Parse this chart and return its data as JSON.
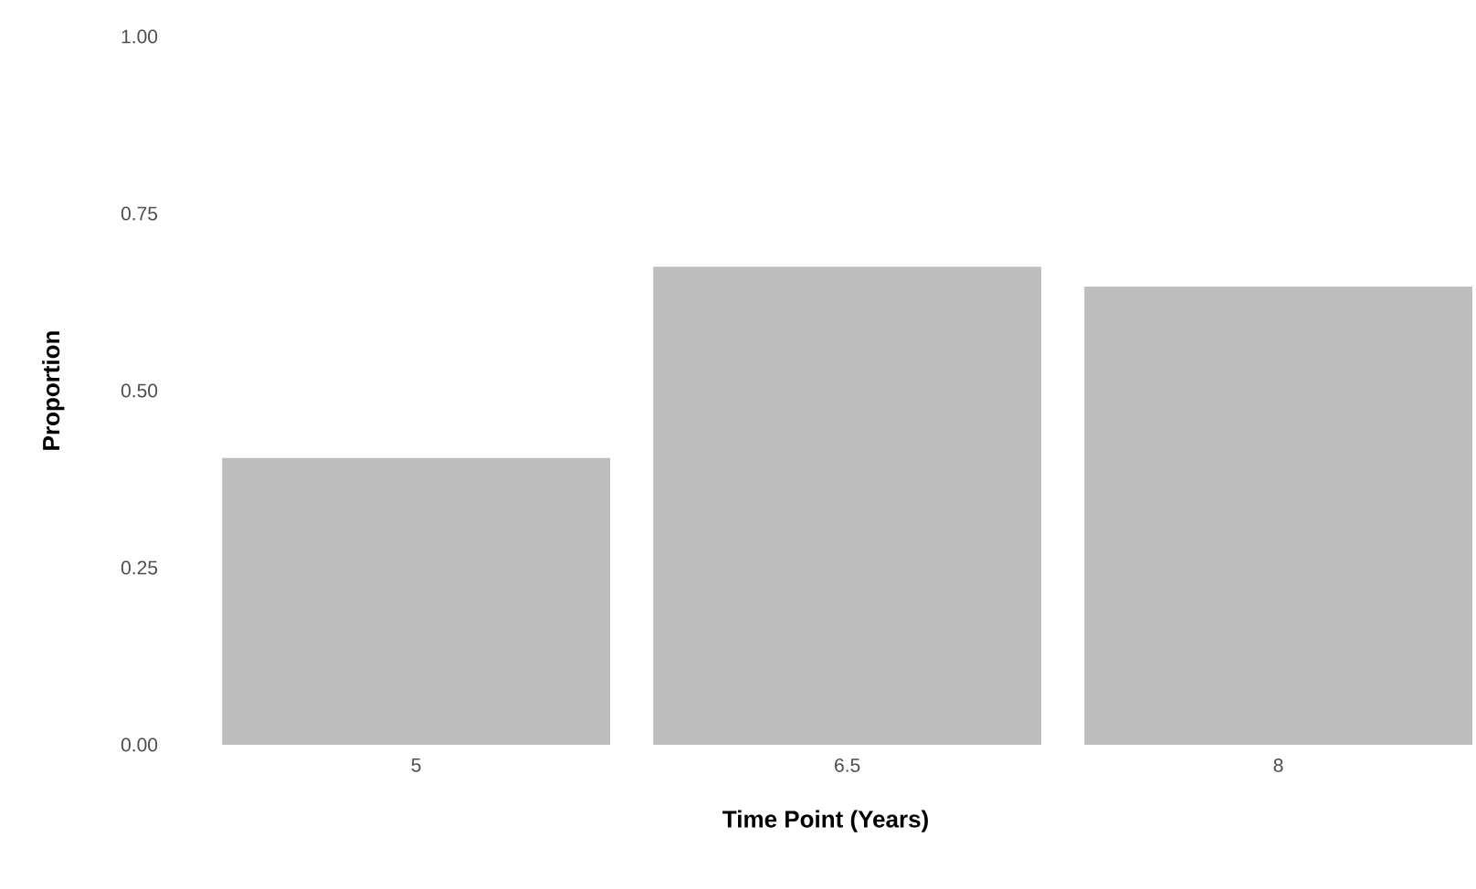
{
  "chart_data": {
    "type": "bar",
    "xlabel": "Time Point (Years)",
    "ylabel": "Proportion",
    "categories": [
      "5",
      "6.5",
      "8"
    ],
    "values": [
      0.405,
      0.675,
      0.647
    ],
    "color": "#bebebe",
    "ylim": [
      0,
      1
    ],
    "yticks": [
      {
        "value": 0,
        "label": "0.00"
      },
      {
        "value": 0.25,
        "label": "0.25"
      },
      {
        "value": 0.5,
        "label": "0.50"
      },
      {
        "value": 0.75,
        "label": "0.75"
      },
      {
        "value": 1,
        "label": "1.00"
      }
    ],
    "grid": false
  }
}
